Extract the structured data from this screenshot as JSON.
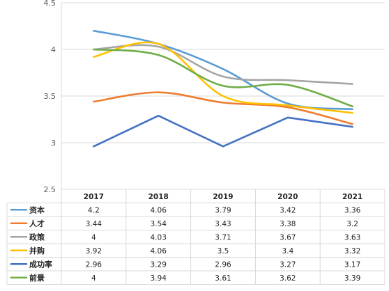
{
  "chart_data": {
    "type": "line",
    "title": "",
    "xlabel": "",
    "ylabel": "",
    "ylim": [
      2.5,
      4.5
    ],
    "yticks": [
      "2.5",
      "3",
      "3.5",
      "4",
      "4.5"
    ],
    "grid": true,
    "legend": "data-table",
    "categories": [
      "2017",
      "2018",
      "2019",
      "2020",
      "2021"
    ],
    "series": [
      {
        "name": "资本",
        "color": "#5B9BD5",
        "values": [
          4.2,
          4.06,
          3.79,
          3.42,
          3.36
        ],
        "labels": [
          "4.2",
          "4.06",
          "3.79",
          "3.42",
          "3.36"
        ]
      },
      {
        "name": "人才",
        "color": "#ED7D31",
        "values": [
          3.44,
          3.54,
          3.43,
          3.38,
          3.2
        ],
        "labels": [
          "3.44",
          "3.54",
          "3.43",
          "3.38",
          "3.2"
        ]
      },
      {
        "name": "政策",
        "color": "#A5A5A5",
        "values": [
          4,
          4.03,
          3.71,
          3.67,
          3.63
        ],
        "labels": [
          "4",
          "4.03",
          "3.71",
          "3.67",
          "3.63"
        ]
      },
      {
        "name": "并购",
        "color": "#FFC000",
        "values": [
          3.92,
          4.06,
          3.5,
          3.4,
          3.32
        ],
        "labels": [
          "3.92",
          "4.06",
          "3.5",
          "3.4",
          "3.32"
        ]
      },
      {
        "name": "成功率",
        "color": "#4472C4",
        "values": [
          2.96,
          3.29,
          2.96,
          3.27,
          3.17
        ],
        "labels": [
          "2.96",
          "3.29",
          "2.96",
          "3.27",
          "3.17"
        ]
      },
      {
        "name": "前景",
        "color": "#70AD47",
        "values": [
          4,
          3.94,
          3.61,
          3.62,
          3.39
        ],
        "labels": [
          "4",
          "3.94",
          "3.61",
          "3.62",
          "3.39"
        ]
      }
    ]
  }
}
